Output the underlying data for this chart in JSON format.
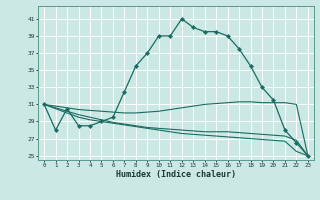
{
  "xlabel": "Humidex (Indice chaleur)",
  "bg_color": "#cce8e4",
  "grid_color": "#ffffff",
  "line_color": "#1a6b62",
  "xlim": [
    -0.5,
    23.5
  ],
  "ylim": [
    24.5,
    42.5
  ],
  "yticks": [
    25,
    27,
    29,
    31,
    33,
    35,
    37,
    39,
    41
  ],
  "xticks": [
    0,
    1,
    2,
    3,
    4,
    5,
    6,
    7,
    8,
    9,
    10,
    11,
    12,
    13,
    14,
    15,
    16,
    17,
    18,
    19,
    20,
    21,
    22,
    23
  ],
  "series1_x": [
    0,
    1,
    2,
    3,
    4,
    5,
    6,
    7,
    8,
    9,
    10,
    11,
    12,
    13,
    14,
    15,
    16,
    17,
    18,
    19,
    20,
    21,
    22,
    23
  ],
  "series1_y": [
    31.0,
    28.0,
    30.5,
    28.5,
    28.5,
    29.0,
    29.5,
    32.5,
    35.5,
    37.0,
    39.0,
    39.0,
    41.0,
    40.0,
    39.5,
    39.5,
    39.0,
    37.5,
    35.5,
    33.0,
    31.5,
    28.0,
    26.5,
    25.0
  ],
  "series2_x": [
    0,
    1,
    2,
    3,
    4,
    5,
    6,
    7,
    8,
    9,
    10,
    11,
    12,
    13,
    14,
    15,
    16,
    17,
    18,
    19,
    20,
    21,
    22,
    23
  ],
  "series2_y": [
    31.0,
    30.8,
    30.6,
    30.4,
    30.3,
    30.2,
    30.1,
    30.0,
    30.0,
    30.1,
    30.2,
    30.4,
    30.6,
    30.8,
    31.0,
    31.1,
    31.2,
    31.3,
    31.3,
    31.2,
    31.2,
    31.2,
    31.0,
    25.0
  ],
  "series3_x": [
    0,
    1,
    2,
    3,
    4,
    5,
    6,
    7,
    8,
    9,
    10,
    11,
    12,
    13,
    14,
    15,
    16,
    17,
    18,
    19,
    20,
    21,
    22,
    23
  ],
  "series3_y": [
    31.0,
    30.5,
    30.0,
    29.5,
    29.2,
    29.0,
    28.8,
    28.6,
    28.4,
    28.2,
    28.0,
    27.8,
    27.6,
    27.5,
    27.4,
    27.3,
    27.2,
    27.1,
    27.0,
    26.9,
    26.8,
    26.7,
    25.5,
    25.0
  ],
  "series4_x": [
    0,
    1,
    2,
    3,
    4,
    5,
    6,
    7,
    8,
    9,
    10,
    11,
    12,
    13,
    14,
    15,
    16,
    17,
    18,
    19,
    20,
    21,
    22,
    23
  ],
  "series4_y": [
    31.0,
    30.6,
    30.2,
    29.8,
    29.5,
    29.2,
    28.9,
    28.7,
    28.5,
    28.3,
    28.2,
    28.1,
    28.0,
    27.9,
    27.8,
    27.8,
    27.8,
    27.7,
    27.6,
    27.5,
    27.4,
    27.3,
    26.8,
    25.0
  ]
}
